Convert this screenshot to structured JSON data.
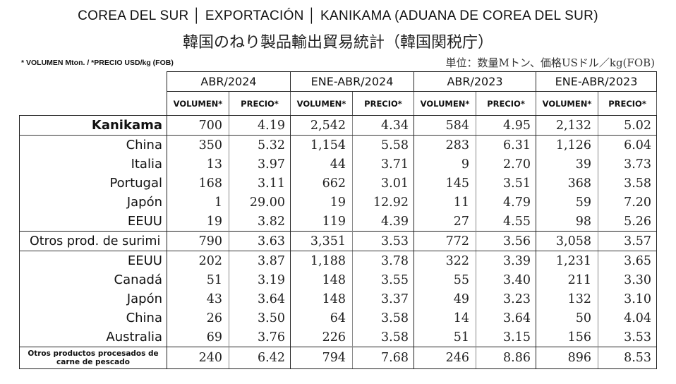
{
  "header": {
    "title": "COREA DEL SUR │ EXPORTACIÓN │ KANIKAMA (ADUANA DE COREA DEL SUR)",
    "jp_title": "韓国のねり製品輸出貿易統計（韓国関税庁）",
    "units_es": "* VOLUMEN Mton.  / *PRECIO USD/kg (FOB)",
    "units_jp": "単位：数量Mトン、価格USドル／kg(FOB)"
  },
  "table": {
    "periods": [
      "ABR/2024",
      "ENE-ABR/2024",
      "ABR/2023",
      "ENE-ABR/2023"
    ],
    "metrics": [
      "VOLUMEN*",
      "PRECIO*"
    ],
    "rows": [
      {
        "label": "Kanikama",
        "values": [
          "700",
          "4.19",
          "2,542",
          "4.34",
          "584",
          "4.95",
          "2,132",
          "5.02"
        ]
      },
      {
        "label": "China",
        "values": [
          "350",
          "5.32",
          "1,154",
          "5.58",
          "283",
          "6.31",
          "1,126",
          "6.04"
        ]
      },
      {
        "label": "Italia",
        "values": [
          "13",
          "3.97",
          "44",
          "3.71",
          "9",
          "2.70",
          "39",
          "3.73"
        ]
      },
      {
        "label": "Portugal",
        "values": [
          "168",
          "3.11",
          "662",
          "3.01",
          "145",
          "3.51",
          "368",
          "3.58"
        ]
      },
      {
        "label": "Japón",
        "values": [
          "1",
          "29.00",
          "19",
          "12.92",
          "11",
          "4.79",
          "59",
          "7.20"
        ]
      },
      {
        "label": "EEUU",
        "values": [
          "19",
          "3.82",
          "119",
          "4.39",
          "27",
          "4.55",
          "98",
          "5.26"
        ]
      },
      {
        "label": "Otros prod. de surimi",
        "values": [
          "790",
          "3.63",
          "3,351",
          "3.53",
          "772",
          "3.56",
          "3,058",
          "3.57"
        ]
      },
      {
        "label": "EEUU",
        "values": [
          "202",
          "3.87",
          "1,188",
          "3.78",
          "322",
          "3.39",
          "1,231",
          "3.65"
        ]
      },
      {
        "label": "Canadá",
        "values": [
          "51",
          "3.19",
          "148",
          "3.55",
          "55",
          "3.40",
          "211",
          "3.30"
        ]
      },
      {
        "label": "Japón",
        "values": [
          "43",
          "3.64",
          "148",
          "3.37",
          "49",
          "3.23",
          "132",
          "3.10"
        ]
      },
      {
        "label": "China",
        "values": [
          "26",
          "3.50",
          "64",
          "3.58",
          "14",
          "3.64",
          "50",
          "4.04"
        ]
      },
      {
        "label": "Australia",
        "values": [
          "69",
          "3.76",
          "226",
          "3.58",
          "51",
          "3.15",
          "156",
          "3.53"
        ]
      },
      {
        "label": "Otros productos procesados de carne de pescado",
        "values": [
          "240",
          "6.42",
          "794",
          "7.68",
          "246",
          "8.86",
          "896",
          "8.53"
        ]
      }
    ]
  }
}
